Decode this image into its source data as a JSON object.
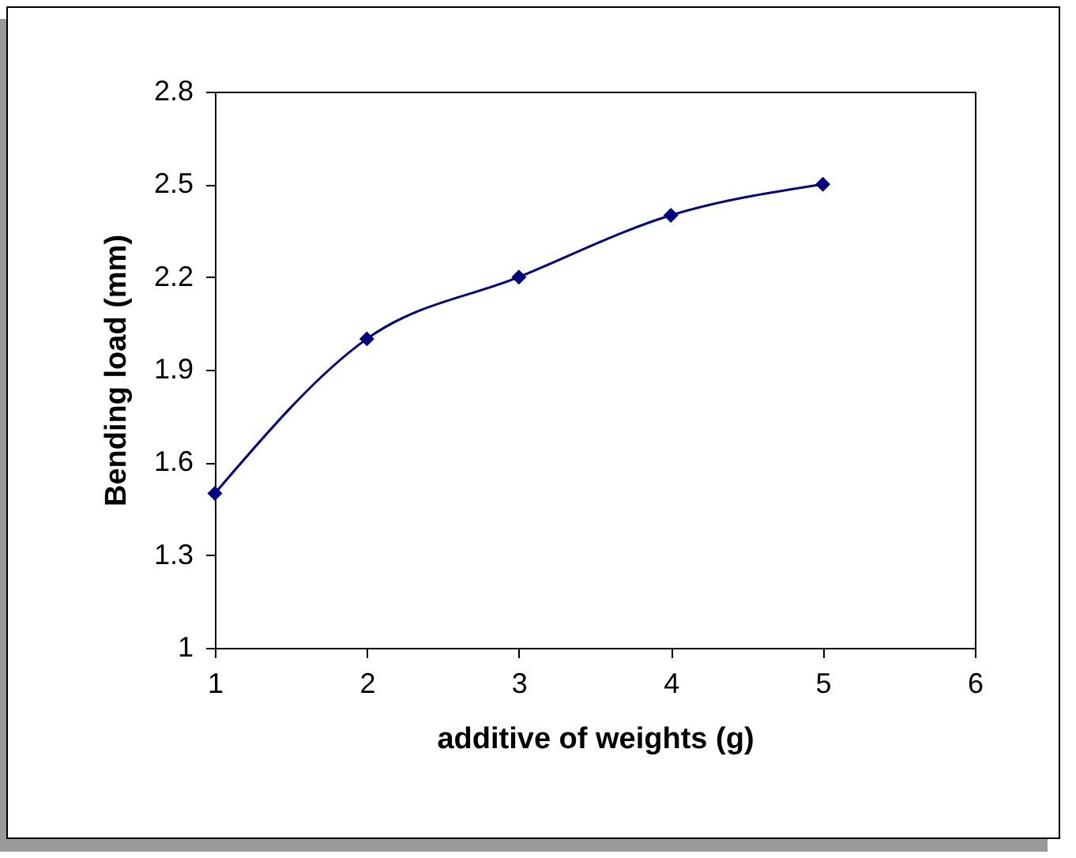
{
  "chart_data": {
    "type": "line",
    "xlabel": "additive of weights (g)",
    "ylabel": "Bending load (mm)",
    "x": [
      1,
      2,
      3,
      4,
      5
    ],
    "series": [
      {
        "color": "#000080",
        "values": [
          1.5,
          2.0,
          2.2,
          2.4,
          2.5
        ]
      }
    ],
    "xlim": [
      1,
      6
    ],
    "xticks": [
      1,
      2,
      3,
      4,
      5,
      6
    ],
    "ylim": [
      1,
      2.8
    ],
    "yticks": [
      1,
      1.3,
      1.6,
      1.9,
      2.2,
      2.5,
      2.8
    ],
    "grid": false,
    "legend": false,
    "marker": "diamond",
    "line_style": "solid"
  }
}
